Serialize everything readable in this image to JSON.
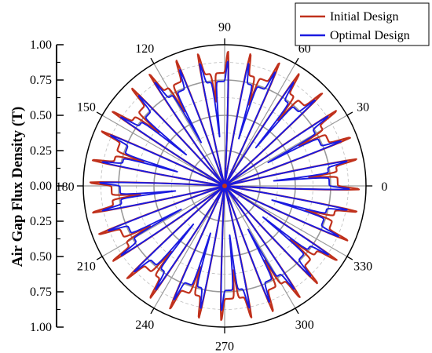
{
  "chart_data": {
    "type": "polar-line",
    "ylabel": "Air Gap Flux Density (T)",
    "radial_range": [
      0,
      1.0
    ],
    "radial_ticks": [
      "1.00",
      "0.75",
      "0.50",
      "0.25",
      "0.00",
      "0.25",
      "0.50",
      "0.75",
      "1.00"
    ],
    "angle_ticks": [
      "0",
      "30",
      "60",
      "90",
      "120",
      "150",
      "180",
      "210",
      "240",
      "270",
      "300",
      "330"
    ],
    "grid": true,
    "legend_position": "top-right",
    "pole_count": 16,
    "pole_center_angles": [
      5,
      27.5,
      50,
      72.5,
      95,
      117.5,
      140,
      162.5,
      185,
      207.5,
      230,
      252.5,
      275,
      297.5,
      320,
      342.5
    ],
    "series": [
      {
        "name": "Initial Design",
        "color": "#c0311c",
        "plateau": 0.8,
        "edge_peak": 0.97,
        "slot_dip": 0.6
      },
      {
        "name": "Optimal Design",
        "color": "#1a1ae0",
        "plateau": 0.74,
        "edge_peak": 0.9,
        "slot_dip": 0.35
      }
    ]
  }
}
